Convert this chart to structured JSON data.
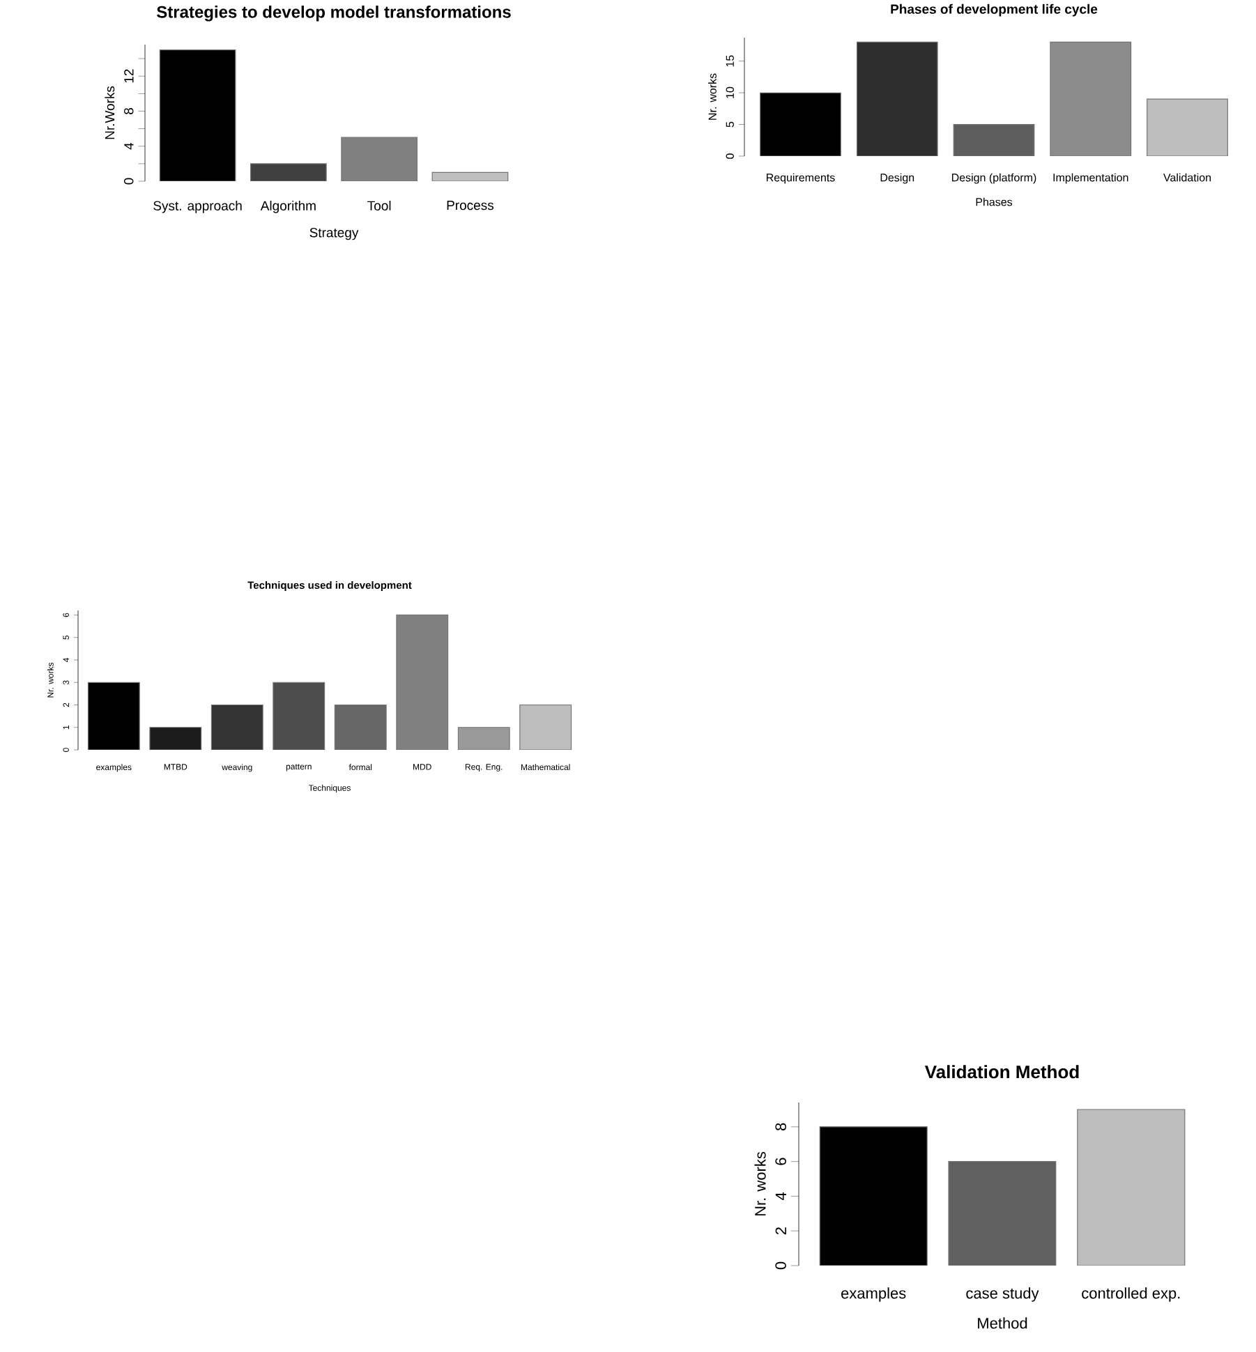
{
  "chart_data": [
    {
      "type": "bar",
      "title": "Strategies to develop model transformations",
      "xlabel": "Strategy",
      "ylabel": "Nr.Works",
      "categories": [
        "Syst. approach",
        "Algorithm",
        "Tool",
        "Process"
      ],
      "values": [
        15,
        2,
        5,
        1
      ],
      "colors": [
        "#000000",
        "#404040",
        "#808080",
        "#bfbfbf"
      ],
      "ylim": [
        0,
        15.6
      ],
      "yticks": [
        0,
        {
          "value": 2,
          "label": null
        },
        4,
        {
          "value": 6,
          "label": null
        },
        8,
        {
          "value": 10,
          "label": null
        },
        12,
        {
          "value": 14,
          "label": null
        }
      ]
    },
    {
      "type": "bar",
      "title": "Phases of development life cycle",
      "xlabel": "Phases",
      "ylabel": "Nr. works",
      "categories": [
        "Requirements",
        "Design",
        "Design (platform)",
        "Implementation",
        "Validation"
      ],
      "values": [
        10,
        18,
        5,
        18,
        9
      ],
      "colors": [
        "#000000",
        "#2e2e2e",
        "#5e5e5e",
        "#8c8c8c",
        "#bebebe"
      ],
      "ylim": [
        0,
        18.7
      ],
      "yticks": [
        0,
        5,
        10,
        15
      ]
    },
    {
      "type": "bar",
      "title": "Techniques used in development",
      "xlabel": "Techniques",
      "ylabel": "Nr. works",
      "categories": [
        "examples",
        "MTBD",
        "weaving",
        "pattern",
        "formal",
        "MDD",
        "Req. Eng.",
        "Mathematical"
      ],
      "values": [
        3,
        1,
        2,
        3,
        2,
        6,
        1,
        2
      ],
      "colors": [
        "#000000",
        "#1c1c1c",
        "#333333",
        "#4d4d4d",
        "#666666",
        "#808080",
        "#999999",
        "#bdbdbd"
      ],
      "ylim": [
        0,
        6.2
      ],
      "yticks": [
        0,
        1,
        2,
        3,
        4,
        5,
        6
      ]
    },
    {
      "type": "bar",
      "title": "Validation Method",
      "xlabel": "Method",
      "ylabel": "Nr. works",
      "categories": [
        "examples",
        "case study",
        "controlled exp."
      ],
      "values": [
        8,
        6,
        9
      ],
      "colors": [
        "#000000",
        "#606060",
        "#bebebe"
      ],
      "ylim": [
        0,
        9.4
      ],
      "yticks": [
        0,
        2,
        4,
        6,
        8
      ]
    }
  ]
}
